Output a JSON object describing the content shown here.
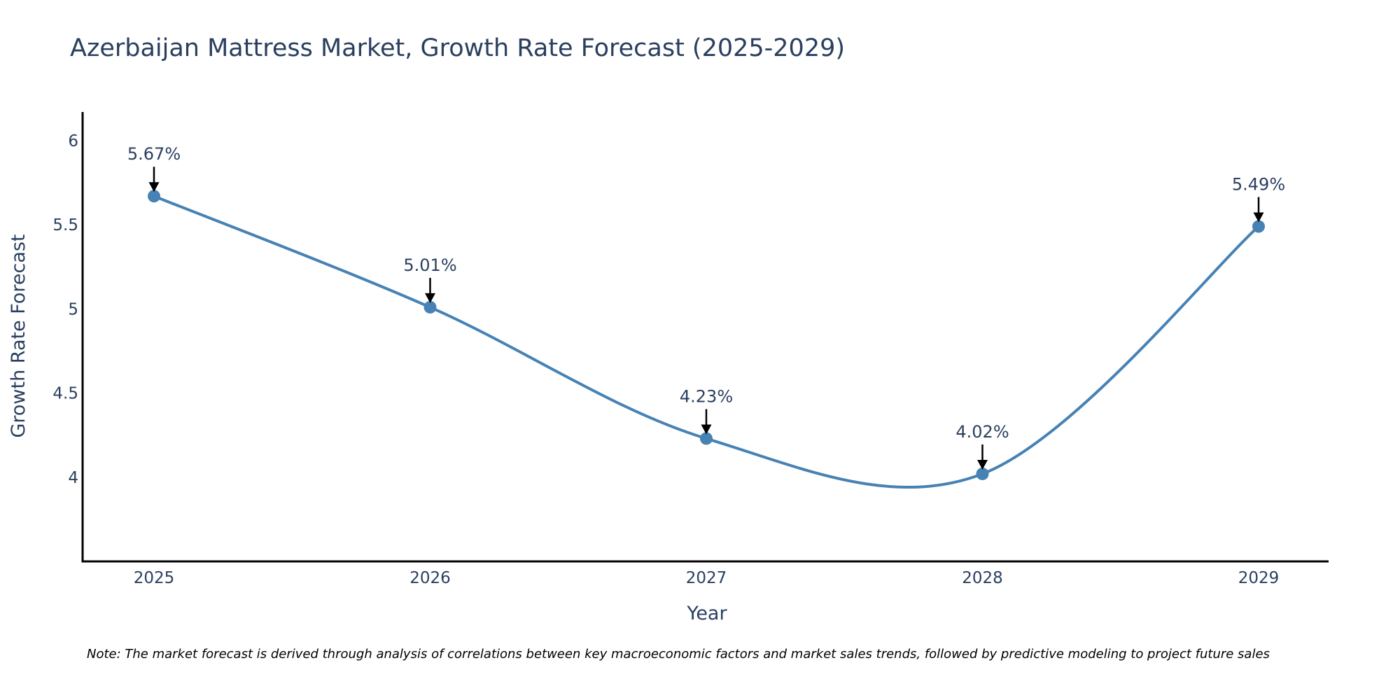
{
  "chart_data": {
    "type": "line",
    "title": "Azerbaijan Mattress Market, Growth Rate Forecast (2025-2029)",
    "xlabel": "Year",
    "ylabel": "Growth Rate Forecast",
    "categories": [
      "2025",
      "2026",
      "2027",
      "2028",
      "2029"
    ],
    "values": [
      5.67,
      5.01,
      4.23,
      4.02,
      5.49
    ],
    "data_labels": [
      "5.67%",
      "5.01%",
      "4.23%",
      "4.02%",
      "5.49%"
    ],
    "y_ticks": [
      4,
      4.5,
      5,
      5.5,
      6
    ],
    "y_tick_labels": [
      "4",
      "4.5",
      "5",
      "5.5",
      "6"
    ],
    "ylim": [
      3.5,
      6.17
    ],
    "line_shape": "spline",
    "grid": false,
    "legend": "none",
    "colors": {
      "line": "#4682b4",
      "marker": "#4682b4",
      "arrow": "#000000",
      "axis": "#000000",
      "text": "#2a3f5f"
    }
  },
  "note": "Note: The market forecast is derived through analysis of correlations between key macroeconomic factors and market sales trends, followed by predictive modeling to project future sales"
}
